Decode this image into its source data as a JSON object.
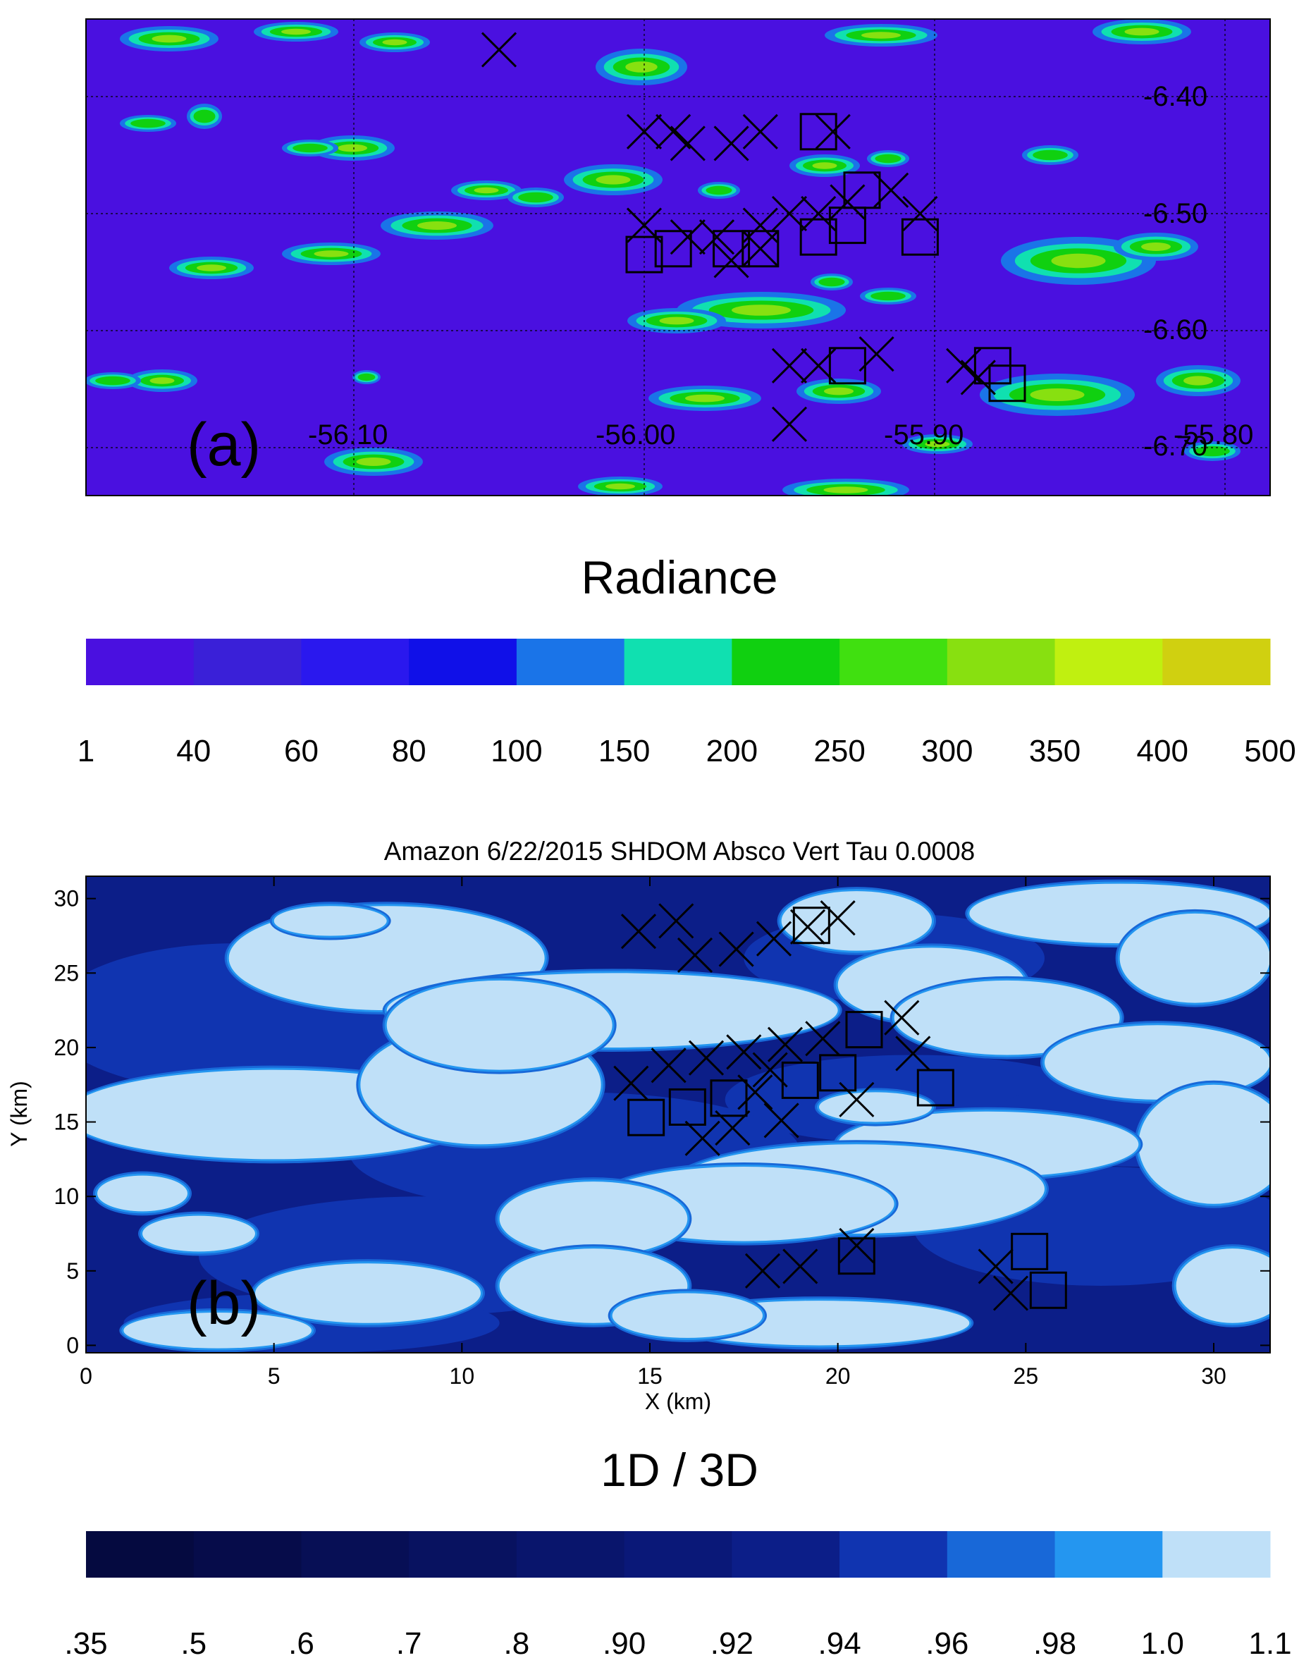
{
  "panel_a": {
    "label": "(a)",
    "lon_labels": [
      "-56.10",
      "-56.00",
      "-55.90",
      "-55.80"
    ],
    "lat_labels": [
      "-6.40",
      "-6.50",
      "-6.60",
      "-6.70"
    ],
    "colorbar": {
      "title": "Radiance",
      "ticks": [
        "1",
        "40",
        "60",
        "80",
        "100",
        "150",
        "200",
        "250",
        "300",
        "350",
        "400",
        "500"
      ],
      "colors": [
        "#4a10e0",
        "#3a20d8",
        "#2a18ee",
        "#1010e8",
        "#1a74e8",
        "#10e0b0",
        "#10d010",
        "#40e010",
        "#88e010",
        "#c0f010",
        "#d0d010"
      ]
    }
  },
  "panel_b": {
    "label": "(b)",
    "title": "Amazon 6/22/2015 SHDOM Absco Vert Tau 0.0008",
    "xlabel": "X (km)",
    "ylabel": "Y (km)",
    "xticks": [
      "0",
      "5",
      "10",
      "15",
      "20",
      "25",
      "30"
    ],
    "yticks": [
      "0",
      "5",
      "10",
      "15",
      "20",
      "25",
      "30"
    ],
    "colorbar": {
      "title": "1D / 3D",
      "ticks": [
        ".35",
        ".5",
        ".6",
        ".7",
        ".8",
        ".90",
        ".92",
        ".94",
        ".96",
        ".98",
        "1.0",
        "1.1"
      ],
      "colors": [
        "#050a40",
        "#060c4a",
        "#070f55",
        "#081260",
        "#09156c",
        "#0a1878",
        "#0c1e88",
        "#1034b0",
        "#1868d8",
        "#2496f0",
        "#bfe0f8"
      ]
    }
  },
  "chart_data": [
    {
      "type": "heatmap",
      "title": "",
      "colorbar_title": "Radiance",
      "colorbar_levels": [
        1,
        40,
        60,
        80,
        100,
        150,
        200,
        250,
        300,
        350,
        400,
        500
      ],
      "x_axis_labels": [
        -56.1,
        -56.0,
        -55.9,
        -55.8
      ],
      "y_axis_labels": [
        -6.4,
        -6.5,
        -6.6,
        -6.7
      ],
      "x_markers": [
        [
          -56.05,
          -6.36
        ],
        [
          -56.0,
          -6.43
        ],
        [
          -55.99,
          -6.43
        ],
        [
          -55.985,
          -6.44
        ],
        [
          -55.97,
          -6.44
        ],
        [
          -55.96,
          -6.43
        ],
        [
          -55.935,
          -6.43
        ],
        [
          -56.0,
          -6.51
        ],
        [
          -55.985,
          -6.52
        ],
        [
          -55.975,
          -6.52
        ],
        [
          -55.96,
          -6.51
        ],
        [
          -55.95,
          -6.5
        ],
        [
          -55.94,
          -6.5
        ],
        [
          -55.93,
          -6.49
        ],
        [
          -55.915,
          -6.48
        ],
        [
          -55.905,
          -6.5
        ],
        [
          -55.97,
          -6.54
        ],
        [
          -55.96,
          -6.53
        ],
        [
          -55.95,
          -6.63
        ],
        [
          -55.94,
          -6.63
        ],
        [
          -55.92,
          -6.62
        ],
        [
          -55.89,
          -6.63
        ],
        [
          -55.885,
          -6.64
        ],
        [
          -55.95,
          -6.68
        ]
      ],
      "square_markers": [
        [
          -55.94,
          -6.43
        ],
        [
          -55.925,
          -6.48
        ],
        [
          -55.93,
          -6.51
        ],
        [
          -55.94,
          -6.52
        ],
        [
          -55.905,
          -6.52
        ],
        [
          -55.96,
          -6.53
        ],
        [
          -55.97,
          -6.53
        ],
        [
          -55.99,
          -6.53
        ],
        [
          -56.0,
          -6.535
        ],
        [
          -55.93,
          -6.63
        ],
        [
          -55.88,
          -6.63
        ],
        [
          -55.875,
          -6.645
        ]
      ]
    },
    {
      "type": "heatmap",
      "title": "Amazon 6/22/2015 SHDOM Absco Vert Tau 0.0008",
      "colorbar_title": "1D / 3D",
      "colorbar_levels": [
        0.35,
        0.5,
        0.6,
        0.7,
        0.8,
        0.9,
        0.92,
        0.94,
        0.96,
        0.98,
        1.0,
        1.1
      ],
      "xlabel": "X (km)",
      "ylabel": "Y (km)",
      "xlim": [
        0,
        31.5
      ],
      "ylim": [
        -0.5,
        31.5
      ],
      "x_markers": [
        [
          14.7,
          27.8
        ],
        [
          15.7,
          28.5
        ],
        [
          16.2,
          26.2
        ],
        [
          17.3,
          26.6
        ],
        [
          18.3,
          27.3
        ],
        [
          19.2,
          28.1
        ],
        [
          20.0,
          28.7
        ],
        [
          14.5,
          17.6
        ],
        [
          15.5,
          18.8
        ],
        [
          16.5,
          19.3
        ],
        [
          17.5,
          19.7
        ],
        [
          18.2,
          18.5
        ],
        [
          17.8,
          17.0
        ],
        [
          18.6,
          20.2
        ],
        [
          19.6,
          20.6
        ],
        [
          21.7,
          22.0
        ],
        [
          22.0,
          19.6
        ],
        [
          20.5,
          16.5
        ],
        [
          16.4,
          13.9
        ],
        [
          17.2,
          14.6
        ],
        [
          18.5,
          15.1
        ],
        [
          18.0,
          5.0
        ],
        [
          19.0,
          5.3
        ],
        [
          20.5,
          6.7
        ],
        [
          24.2,
          5.3
        ],
        [
          24.6,
          3.5
        ]
      ],
      "square_markers": [
        [
          19.3,
          28.2
        ],
        [
          20.7,
          21.2
        ],
        [
          20.0,
          18.3
        ],
        [
          19.0,
          17.8
        ],
        [
          22.6,
          17.3
        ],
        [
          17.1,
          16.6
        ],
        [
          16.0,
          16.0
        ],
        [
          14.9,
          15.3
        ],
        [
          20.5,
          6.0
        ],
        [
          25.1,
          6.3
        ],
        [
          25.6,
          3.7
        ]
      ]
    }
  ]
}
